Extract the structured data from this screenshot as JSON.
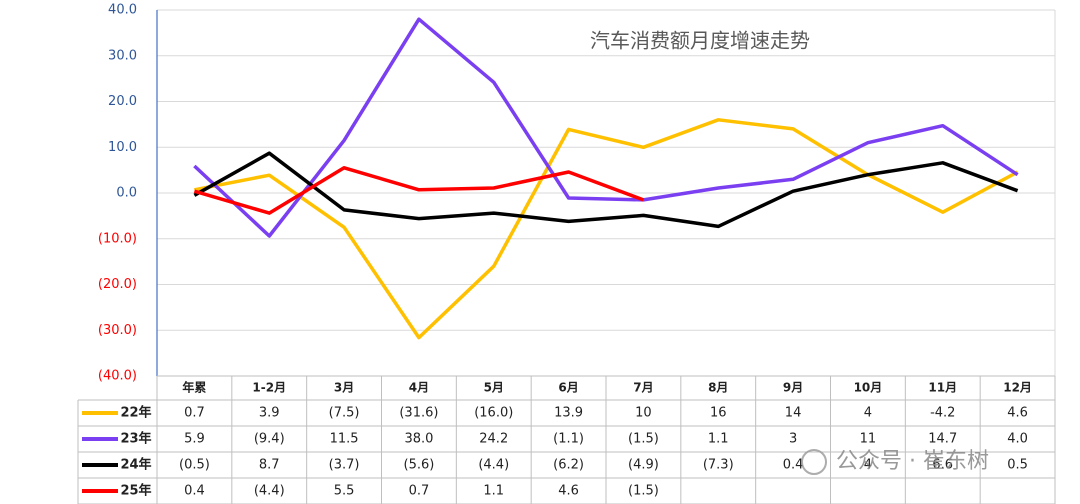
{
  "chart_data": {
    "type": "line",
    "title": "汽车消费额月度增速走势",
    "watermark": "公众号 · 崔东树",
    "categories": [
      "年累",
      "1-2月",
      "3月",
      "4月",
      "5月",
      "6月",
      "7月",
      "8月",
      "9月",
      "10月",
      "11月",
      "12月"
    ],
    "ylim": [
      -40,
      40
    ],
    "yticks": [
      {
        "value": 40,
        "label": "40.0"
      },
      {
        "value": 30,
        "label": "30.0"
      },
      {
        "value": 20,
        "label": "20.0"
      },
      {
        "value": 10,
        "label": "10.0"
      },
      {
        "value": 0,
        "label": "0.0"
      },
      {
        "value": -10,
        "label": "(10.0)"
      },
      {
        "value": -20,
        "label": "(20.0)"
      },
      {
        "value": -30,
        "label": "(30.0)"
      },
      {
        "value": -40,
        "label": "(40.0)"
      }
    ],
    "grid": true,
    "series": [
      {
        "name": "22年",
        "color": "#FFC000",
        "values": [
          0.7,
          3.9,
          -7.5,
          -31.6,
          -16.0,
          13.9,
          10,
          16,
          14,
          4,
          -4.2,
          4.6
        ],
        "value_labels": [
          "0.7",
          "3.9",
          "(7.5)",
          "(31.6)",
          "(16.0)",
          "13.9",
          "10",
          "16",
          "14",
          "4",
          "-4.2",
          "4.6"
        ]
      },
      {
        "name": "23年",
        "color": "#7B3FF2",
        "values": [
          5.9,
          -9.4,
          11.5,
          38.0,
          24.2,
          -1.1,
          -1.5,
          1.1,
          3,
          11,
          14.7,
          4.0
        ],
        "value_labels": [
          "5.9",
          "(9.4)",
          "11.5",
          "38.0",
          "24.2",
          "(1.1)",
          "(1.5)",
          "1.1",
          "3",
          "11",
          "14.7",
          "4.0"
        ]
      },
      {
        "name": "24年",
        "color": "#000000",
        "values": [
          -0.5,
          8.7,
          -3.7,
          -5.6,
          -4.4,
          -6.2,
          -4.9,
          -7.3,
          0.4,
          4,
          6.6,
          0.5
        ],
        "value_labels": [
          "(0.5)",
          "8.7",
          "(3.7)",
          "(5.6)",
          "(4.4)",
          "(6.2)",
          "(4.9)",
          "(7.3)",
          "0.4",
          "4",
          "6.6",
          "0.5"
        ]
      },
      {
        "name": "25年",
        "color": "#FF0000",
        "values": [
          0.4,
          -4.4,
          5.5,
          0.7,
          1.1,
          4.6,
          -1.5,
          null,
          null,
          null,
          null,
          null
        ],
        "value_labels": [
          "0.4",
          "(4.4)",
          "5.5",
          "0.7",
          "1.1",
          "4.6",
          "(1.5)",
          null,
          null,
          null,
          null,
          null
        ]
      }
    ]
  }
}
